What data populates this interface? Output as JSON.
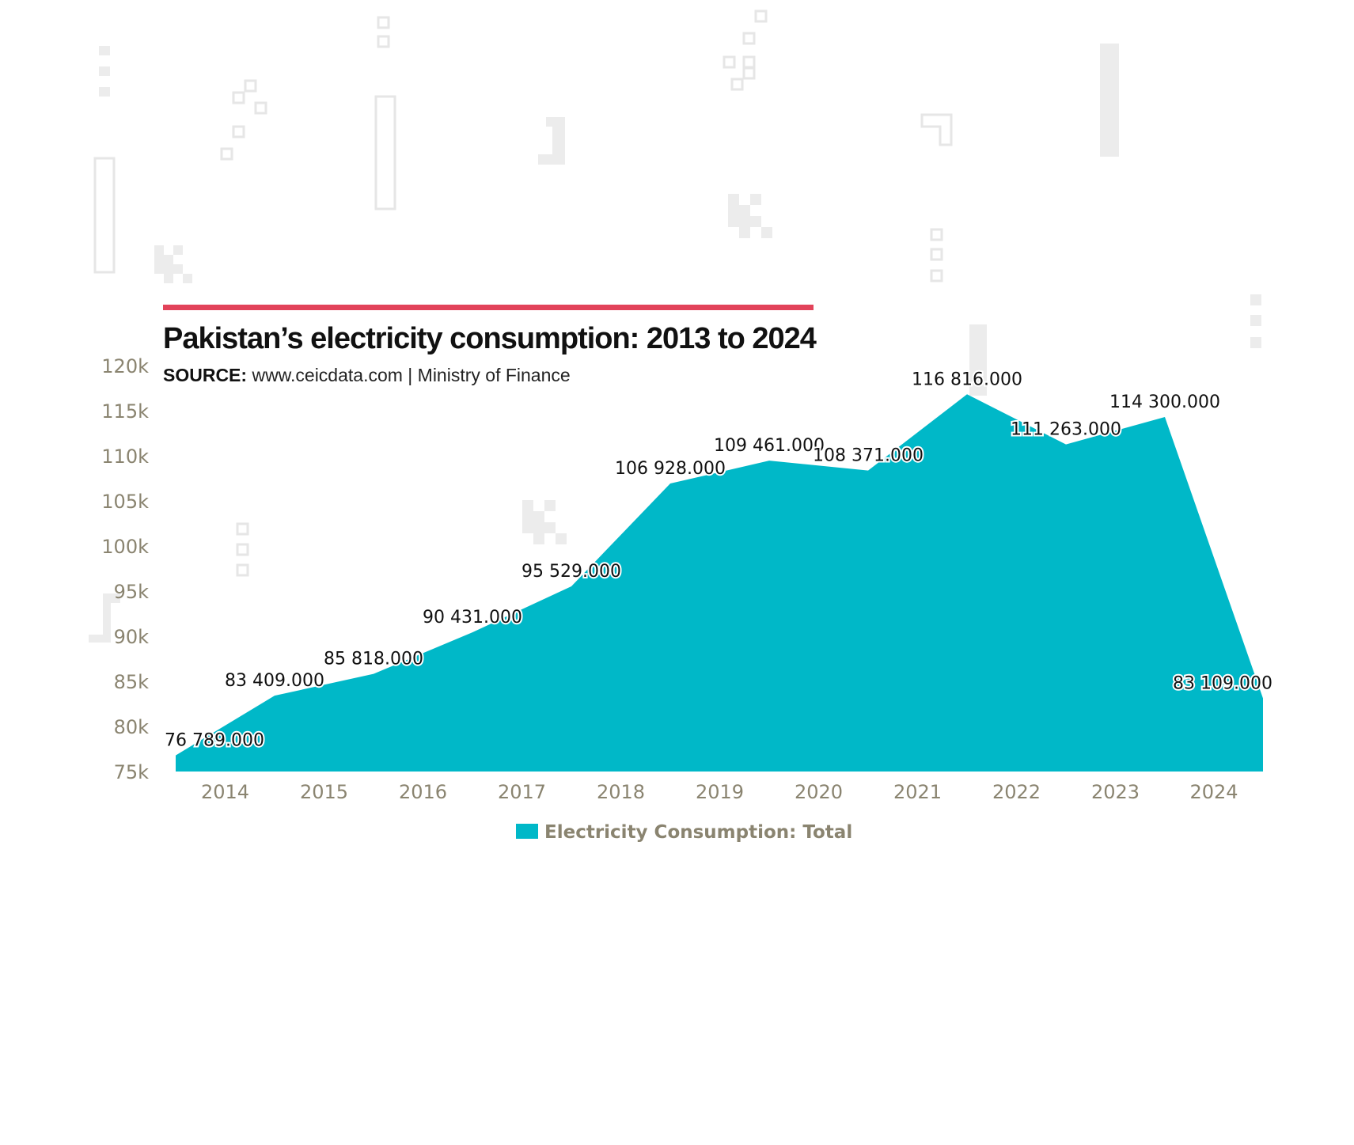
{
  "header": {
    "title": "Pakistan’s electricity consumption: 2013 to 2024",
    "source_label": "SOURCE:",
    "source_text": " www.ceicdata.com | Ministry of Finance",
    "accent_color": "#e2435a"
  },
  "chart_data": {
    "type": "area",
    "categories": [
      "2013",
      "2014",
      "2015",
      "2016",
      "2017",
      "2018",
      "2019",
      "2020",
      "2021",
      "2022",
      "2023",
      "2024"
    ],
    "x_tick_labels": [
      "2014",
      "2015",
      "2016",
      "2017",
      "2018",
      "2019",
      "2020",
      "2021",
      "2022",
      "2023",
      "2024"
    ],
    "series": [
      {
        "name": "Electricity Consumption: Total",
        "color": "#00b8c8",
        "values": [
          76789,
          83409,
          85818,
          90431,
          95529,
          106928,
          109461,
          108371,
          116816,
          111263,
          114300,
          83109
        ],
        "data_labels": [
          "76 789.000",
          "83 409.000",
          "85 818.000",
          "90 431.000",
          "95 529.000",
          "106 928.000",
          "109 461.000",
          "108 371.000",
          "116 816.000",
          "111 263.000",
          "114 300.000",
          "83 109.000"
        ]
      }
    ],
    "y_tick_labels": [
      "75k",
      "80k",
      "85k",
      "90k",
      "95k",
      "100k",
      "105k",
      "110k",
      "115k",
      "120k"
    ],
    "y_ticks": [
      75000,
      80000,
      85000,
      90000,
      95000,
      100000,
      105000,
      110000,
      115000,
      120000
    ],
    "ylim": [
      75000,
      120000
    ],
    "legend_position": "bottom-center",
    "grid": false
  }
}
